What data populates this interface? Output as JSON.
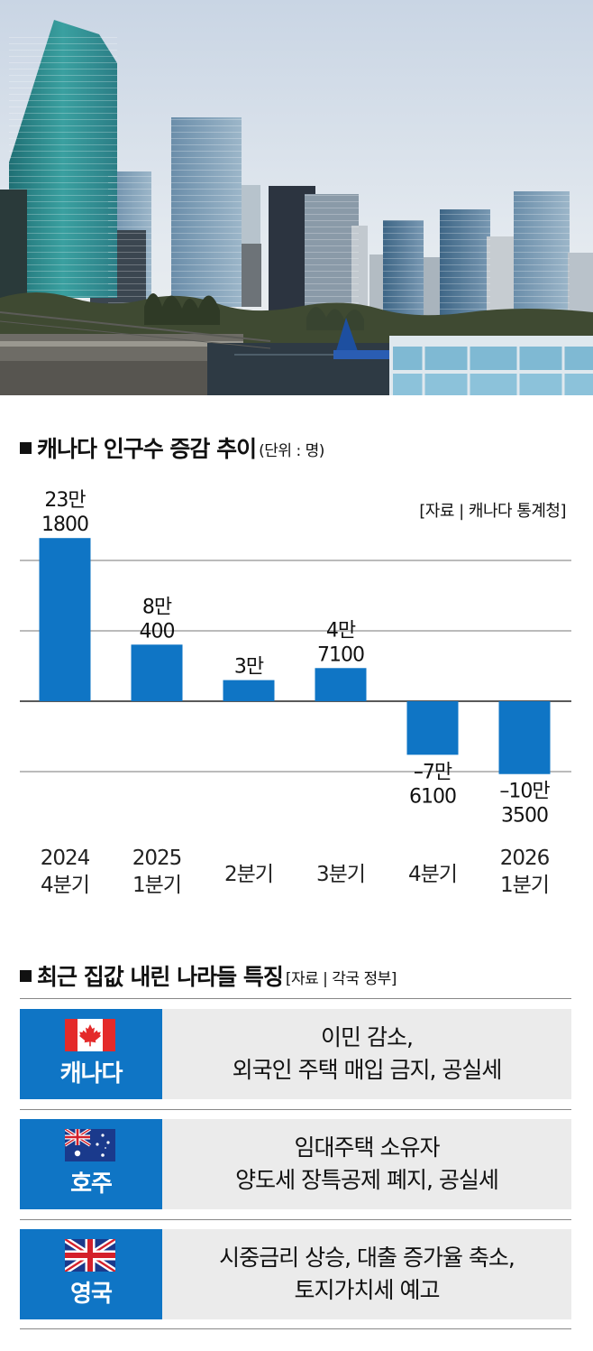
{
  "chart_section": {
    "title": "캐나다 인구수 증감 추이",
    "unit": "(단위 : 명)",
    "source": "[자료 | 캐나다 통계청]"
  },
  "chart_data": {
    "type": "bar",
    "title": "캐나다 인구수 증감 추이",
    "unit": "명",
    "categories": [
      [
        "2024",
        "4분기"
      ],
      [
        "2025",
        "1분기"
      ],
      [
        "2분기"
      ],
      [
        "3분기"
      ],
      [
        "4분기"
      ],
      [
        "2026",
        "1분기"
      ]
    ],
    "values": [
      231800,
      80400,
      30000,
      47100,
      -76100,
      -103500
    ],
    "value_labels": [
      [
        "23만",
        "1800"
      ],
      [
        "8만",
        "400"
      ],
      [
        "3만"
      ],
      [
        "4만",
        "7100"
      ],
      [
        "–7만",
        "6100"
      ],
      [
        "–10만",
        "3500"
      ]
    ],
    "ylim": [
      -200000,
      300000
    ],
    "grid": true,
    "bar_color": "#0f75c5"
  },
  "table_section": {
    "title": "최근 집값 내린 나라들 특징",
    "source": "[자료 | 각국 정부]",
    "rows": [
      {
        "country": "캐나다",
        "flag": "canada-flag",
        "lines": [
          "이민 감소,",
          "외국인 주택 매입 금지, 공실세"
        ]
      },
      {
        "country": "호주",
        "flag": "australia-flag",
        "lines": [
          "임대주택 소유자",
          "양도세 장특공제 폐지, 공실세"
        ]
      },
      {
        "country": "영국",
        "flag": "uk-flag",
        "lines": [
          "시중금리 상승, 대출 증가율 축소,",
          "토지가치세 예고"
        ]
      }
    ]
  },
  "colors": {
    "accent": "#0f75c5",
    "row_bg": "#ebebeb"
  }
}
